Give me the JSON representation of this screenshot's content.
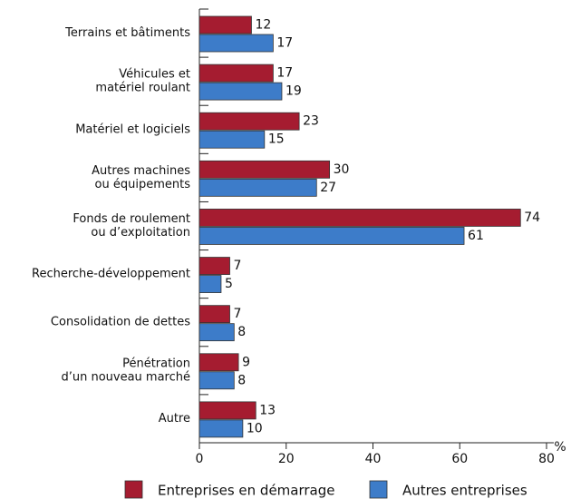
{
  "chart_data": {
    "type": "hbar",
    "categories": [
      [
        "Terrains et bâtiments"
      ],
      [
        "Véhicules et",
        "matériel roulant"
      ],
      [
        "Matériel et logiciels"
      ],
      [
        "Autres machines",
        "ou équipements"
      ],
      [
        "Fonds de roulement",
        "ou d’exploitation"
      ],
      [
        "Recherche-développement"
      ],
      [
        "Consolidation de dettes"
      ],
      [
        "Pénétration",
        "d’un nouveau marché"
      ],
      [
        "Autre"
      ]
    ],
    "series": [
      {
        "name": "Entreprises en démarrage",
        "color": "#a51c30",
        "values": [
          12,
          17,
          23,
          30,
          74,
          7,
          7,
          9,
          13
        ]
      },
      {
        "name": "Autres entreprises",
        "color": "#3d7cc9",
        "values": [
          17,
          19,
          15,
          27,
          61,
          5,
          8,
          8,
          10
        ]
      }
    ],
    "xlabel": "%",
    "xlim": [
      0,
      80
    ],
    "xticks": [
      0,
      20,
      40,
      60,
      80
    ]
  }
}
